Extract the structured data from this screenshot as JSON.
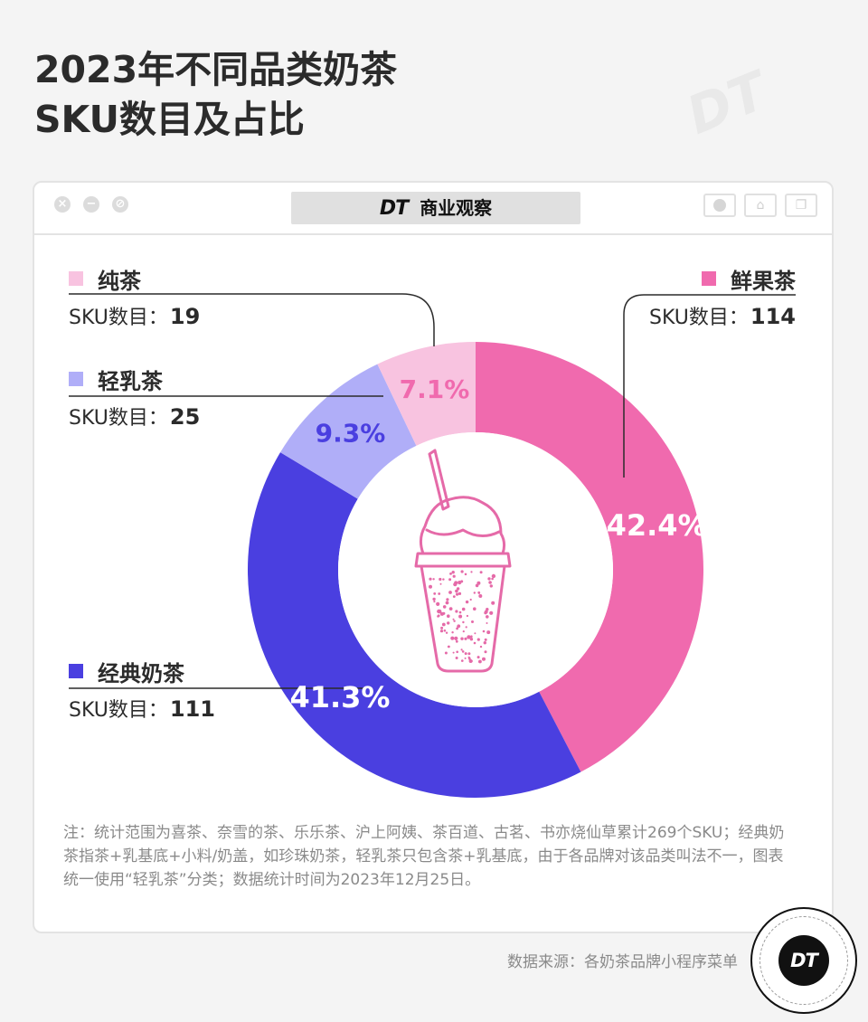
{
  "title": {
    "line1": "2023年不同品类奶茶",
    "line2": "SKU数目及占比"
  },
  "brand": {
    "logo": "DT",
    "name": "商业观察"
  },
  "colors": {
    "fruit_tea": "#f06aae",
    "classic_milk_tea": "#4a3fe0",
    "light_milk_tea": "#b0aef8",
    "pure_tea": "#f8c3e0"
  },
  "legend": {
    "sku_label": "SKU数目：",
    "pure_tea": {
      "name": "纯茶",
      "count": "19"
    },
    "light_milk_tea": {
      "name": "轻乳茶",
      "count": "25"
    },
    "fruit_tea": {
      "name": "鲜果茶",
      "count": "114"
    },
    "classic_milk_tea": {
      "name": "经典奶茶",
      "count": "111"
    }
  },
  "chart_data": {
    "type": "pie",
    "variant": "donut",
    "slices": [
      {
        "name": "鲜果茶",
        "sku": 114,
        "percent": 42.4,
        "label": "42.4%",
        "color": "#f06aae"
      },
      {
        "name": "经典奶茶",
        "sku": 111,
        "percent": 41.3,
        "label": "41.3%",
        "color": "#4a3fe0"
      },
      {
        "name": "轻乳茶",
        "sku": 25,
        "percent": 9.3,
        "label": "9.3%",
        "color": "#b0aef8"
      },
      {
        "name": "纯茶",
        "sku": 19,
        "percent": 7.1,
        "label": "7.1%",
        "color": "#f8c3e0"
      }
    ],
    "center_icon": "bubble-tea-cup-icon"
  },
  "note": "注：统计范围为喜茶、奈雪的茶、乐乐茶、沪上阿姨、茶百道、古茗、书亦烧仙草累计269个SKU；经典奶茶指茶+乳基底+小料/奶盖，如珍珠奶茶，轻乳茶只包含茶+乳基底，由于各品牌对该品类叫法不一，图表统一使用“轻乳茶”分类；数据统计时间为2023年12月25日。",
  "source": "数据来源：各奶茶品牌小程序菜单",
  "stamp": {
    "text": "DT"
  }
}
